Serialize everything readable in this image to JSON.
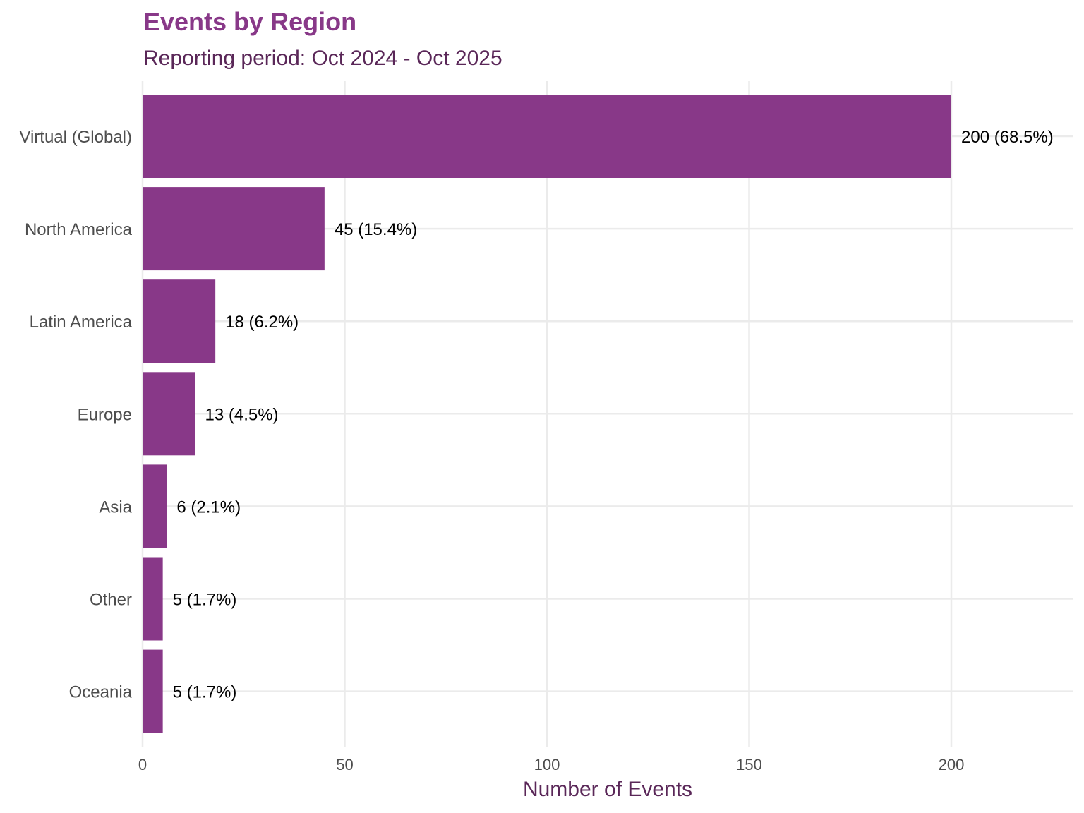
{
  "colors": {
    "bar": "#883888",
    "title": "#883888",
    "subtitle": "#5a2758",
    "axis_title": "#5a2758",
    "grid": "#ebebeb"
  },
  "chart_data": {
    "type": "bar",
    "orientation": "horizontal",
    "title": "Events by Region",
    "subtitle": "Reporting period: Oct 2024 - Oct 2025",
    "xlabel": "Number of Events",
    "ylabel": "",
    "categories": [
      "Virtual (Global)",
      "North America",
      "Latin America",
      "Europe",
      "Asia",
      "Other",
      "Oceania"
    ],
    "values": [
      200,
      45,
      18,
      13,
      6,
      5,
      5
    ],
    "labels": [
      "200 (68.5%)",
      "45 (15.4%)",
      "18 (6.2%)",
      "13 (4.5%)",
      "6 (2.1%)",
      "5 (1.7%)",
      "5 (1.7%)"
    ],
    "xticks": [
      0,
      50,
      100,
      150,
      200
    ],
    "xtick_labels": [
      "0",
      "50",
      "100",
      "150",
      "200"
    ],
    "xlim": [
      0,
      230
    ],
    "grid": true,
    "legend": "none"
  }
}
